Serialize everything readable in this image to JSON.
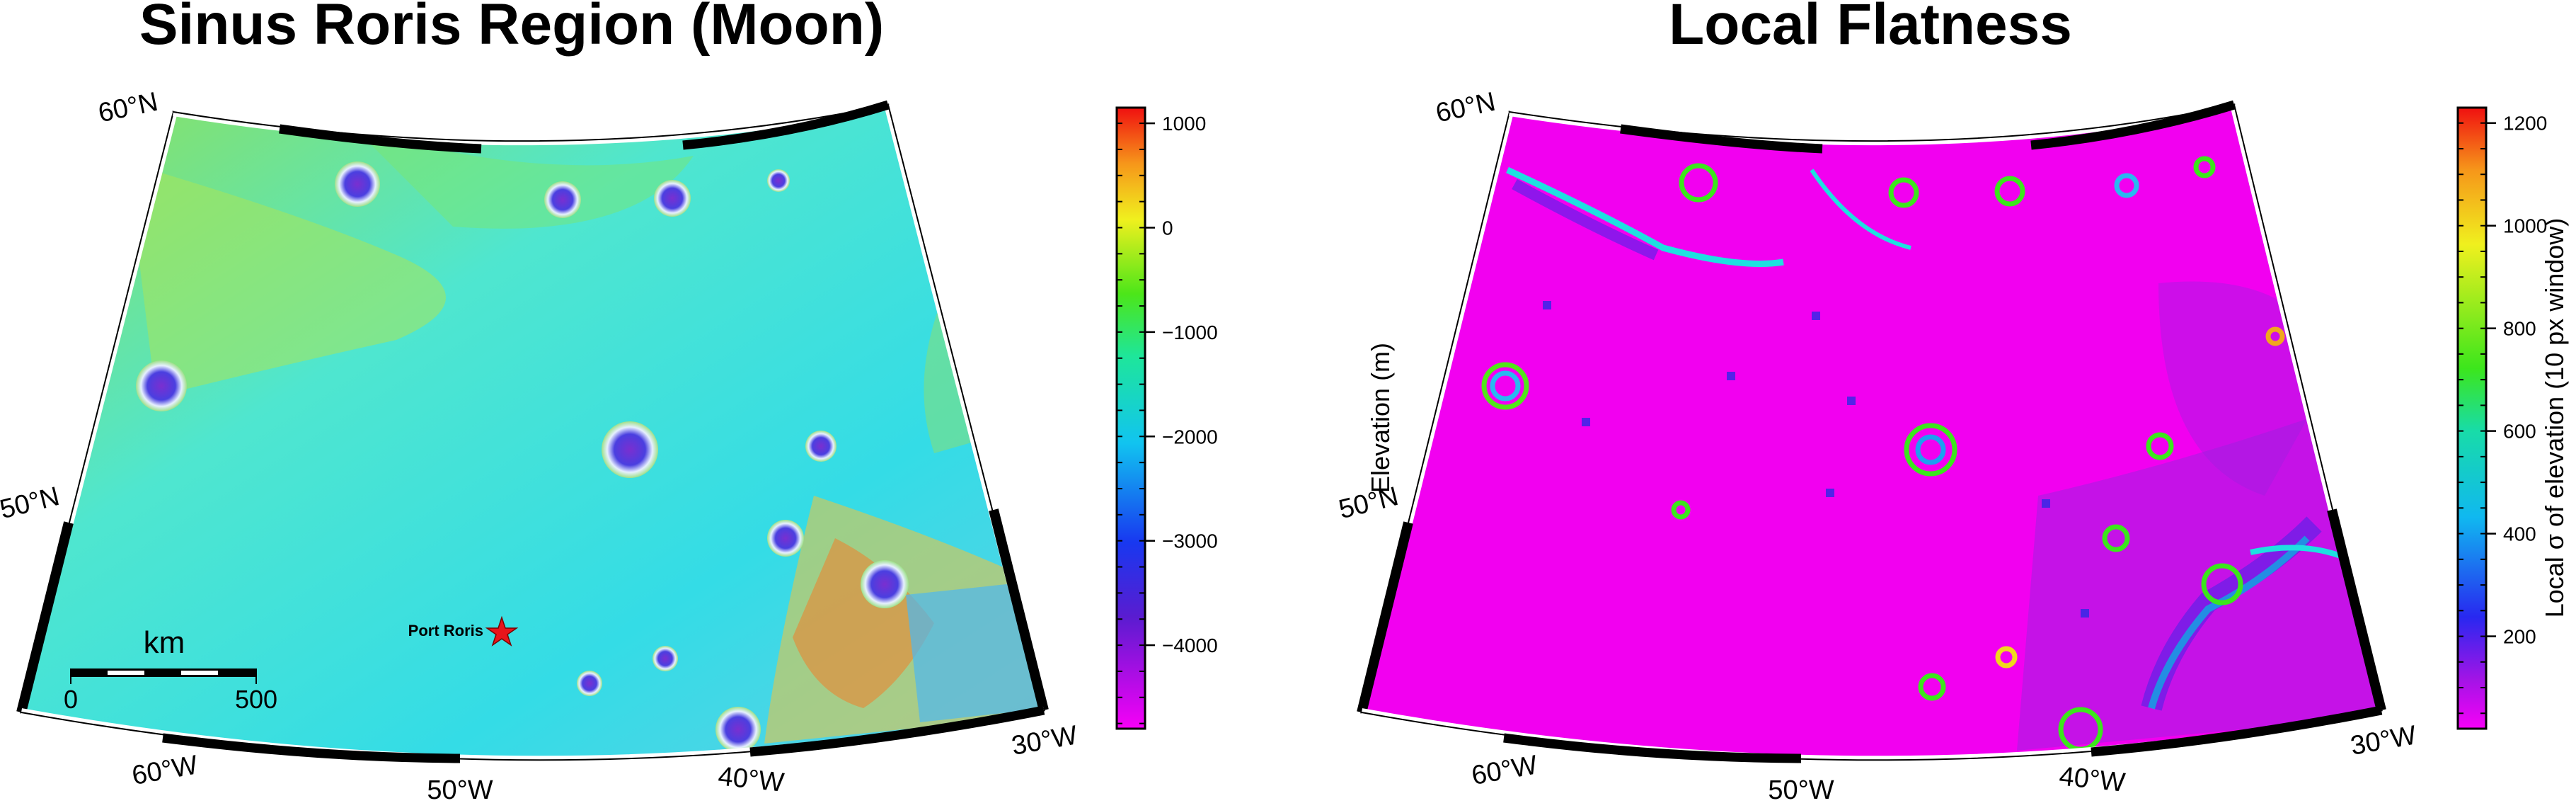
{
  "left_map": {
    "title": "Sinus Roris Region (Moon)",
    "lat_labels": [
      "60°N",
      "50°N"
    ],
    "lon_labels": [
      "60°W",
      "50°W",
      "40°W",
      "30°W"
    ],
    "marker": {
      "label": "Port Roris",
      "icon": "red-star-icon",
      "color": "#e8141b"
    },
    "scalebar": {
      "unit": "km",
      "ticks": [
        "0",
        "500"
      ]
    },
    "colorbar": {
      "label": "Elevation (m)",
      "ticks": [
        "1000",
        "0",
        "−1000",
        "−2000",
        "−3000",
        "−4000"
      ],
      "tick_values": [
        1000,
        0,
        -1000,
        -2000,
        -3000,
        -4000
      ],
      "range": [
        -4800,
        1150
      ],
      "colormap": "rainbow (magenta → blue → cyan → green → yellow → red)"
    }
  },
  "right_map": {
    "title": "Local Flatness",
    "lat_labels": [
      "60°N",
      "50°N"
    ],
    "lon_labels": [
      "60°W",
      "50°W",
      "40°W",
      "30°W"
    ],
    "colorbar": {
      "label": "Local σ of elevation (10 px window)",
      "ticks": [
        "1200",
        "1000",
        "800",
        "600",
        "400",
        "200"
      ],
      "tick_values": [
        1200,
        1000,
        800,
        600,
        400,
        200
      ],
      "range": [
        20,
        1230
      ],
      "colormap": "rainbow (magenta → blue → cyan → green → yellow → red)"
    }
  }
}
